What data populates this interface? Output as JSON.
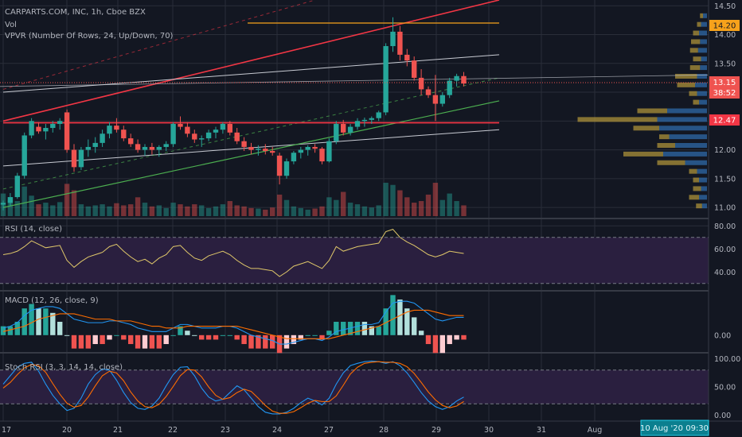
{
  "colors": {
    "bg": "#131722",
    "up": "#26a69a",
    "down": "#ef5350",
    "grid": "#2a2e39",
    "text": "#b2b5be",
    "red_line": "#f23645",
    "green_line": "#4caf50",
    "orange": "#f7a21b",
    "rsi": "#e0c86a",
    "macd": "#2196f3",
    "signal": "#ff6d00",
    "band_fill": "#2a1f3f",
    "vp_up": "#2f6aa8",
    "vp_down": "#b79a3a"
  },
  "legend": {
    "main_title": "CARPARTS.COM, INC, 1h, Cboe BZX",
    "vol": "Vol",
    "vpvr": "VPVR (Number Of Rows, 24, Up/Down, 70)",
    "rsi": "RSI (14, close)",
    "macd": "MACD (12, 26, close, 9)",
    "stoch": "Stoch RSI (3, 3, 14, 14, close)"
  },
  "price_labels": {
    "last": "13.15",
    "countdown": "38:52",
    "level_orange": "14.20",
    "level_red": "12.47"
  },
  "date_tooltip": "10 Aug '20   09:30",
  "chart_data": [
    {
      "type": "candlestick",
      "ylim": [
        10.85,
        14.6
      ],
      "y_ticks": [
        "14.50",
        "14.00",
        "13.50",
        "13.00",
        "12.50",
        "12.00",
        "11.50",
        "11.00"
      ],
      "x_ticks": [
        "17",
        "20",
        "21",
        "22",
        "23",
        "24",
        "27",
        "28",
        "29",
        "30",
        "31",
        "Aug"
      ],
      "candles": [
        [
          11.05,
          11.12,
          10.95,
          11.08
        ],
        [
          11.08,
          11.25,
          11.02,
          11.18
        ],
        [
          11.18,
          11.6,
          11.15,
          11.55
        ],
        [
          11.55,
          12.3,
          11.5,
          12.25
        ],
        [
          12.25,
          12.55,
          12.2,
          12.5
        ],
        [
          12.4,
          12.48,
          12.28,
          12.32
        ],
        [
          12.32,
          12.45,
          12.18,
          12.38
        ],
        [
          12.38,
          12.5,
          12.3,
          12.45
        ],
        [
          12.45,
          12.55,
          12.35,
          12.5
        ],
        [
          12.65,
          12.7,
          11.95,
          12.0
        ],
        [
          12.0,
          12.1,
          11.62,
          11.7
        ],
        [
          11.7,
          12.05,
          11.65,
          12.0
        ],
        [
          12.0,
          12.18,
          11.88,
          12.05
        ],
        [
          12.05,
          12.22,
          11.95,
          12.12
        ],
        [
          12.12,
          12.35,
          12.05,
          12.28
        ],
        [
          12.28,
          12.48,
          12.2,
          12.42
        ],
        [
          12.42,
          12.55,
          12.3,
          12.35
        ],
        [
          12.35,
          12.42,
          12.15,
          12.2
        ],
        [
          12.2,
          12.28,
          12.05,
          12.1
        ],
        [
          12.1,
          12.18,
          11.95,
          12.0
        ],
        [
          12.0,
          12.1,
          11.9,
          12.05
        ],
        [
          12.05,
          12.12,
          11.92,
          12.0
        ],
        [
          12.0,
          12.08,
          11.88,
          12.05
        ],
        [
          12.05,
          12.15,
          11.98,
          12.1
        ],
        [
          12.1,
          12.48,
          12.05,
          12.45
        ],
        [
          12.45,
          12.58,
          12.35,
          12.4
        ],
        [
          12.4,
          12.48,
          12.22,
          12.28
        ],
        [
          12.28,
          12.35,
          12.12,
          12.18
        ],
        [
          12.18,
          12.25,
          12.05,
          12.2
        ],
        [
          12.2,
          12.35,
          12.15,
          12.3
        ],
        [
          12.3,
          12.4,
          12.2,
          12.35
        ],
        [
          12.35,
          12.48,
          12.28,
          12.45
        ],
        [
          12.45,
          12.5,
          12.25,
          12.3
        ],
        [
          12.3,
          12.38,
          12.1,
          12.15
        ],
        [
          12.15,
          12.22,
          11.98,
          12.05
        ],
        [
          12.05,
          12.12,
          11.92,
          12.0
        ],
        [
          12.0,
          12.08,
          11.9,
          12.02
        ],
        [
          12.02,
          12.1,
          11.92,
          11.98
        ],
        [
          11.98,
          12.05,
          11.9,
          11.95
        ],
        [
          11.9,
          11.95,
          11.4,
          11.55
        ],
        [
          11.55,
          11.85,
          11.5,
          11.8
        ],
        [
          11.8,
          11.98,
          11.75,
          11.95
        ],
        [
          11.95,
          12.05,
          11.85,
          12.0
        ],
        [
          12.0,
          12.08,
          11.9,
          12.05
        ],
        [
          12.05,
          12.1,
          11.95,
          12.02
        ],
        [
          12.02,
          12.05,
          11.75,
          11.8
        ],
        [
          11.8,
          12.2,
          11.78,
          12.15
        ],
        [
          12.15,
          12.5,
          12.1,
          12.45
        ],
        [
          12.45,
          12.52,
          12.25,
          12.3
        ],
        [
          12.3,
          12.45,
          12.25,
          12.4
        ],
        [
          12.4,
          12.55,
          12.35,
          12.5
        ],
        [
          12.5,
          12.56,
          12.4,
          12.52
        ],
        [
          12.52,
          12.58,
          12.45,
          12.55
        ],
        [
          12.55,
          12.68,
          12.5,
          12.65
        ],
        [
          12.65,
          13.85,
          12.6,
          13.8
        ],
        [
          13.8,
          14.3,
          13.7,
          14.05
        ],
        [
          14.05,
          14.15,
          13.55,
          13.65
        ],
        [
          13.65,
          13.75,
          13.45,
          13.55
        ],
        [
          13.55,
          13.62,
          13.2,
          13.25
        ],
        [
          13.25,
          13.4,
          12.95,
          13.05
        ],
        [
          13.05,
          13.1,
          12.9,
          12.95
        ],
        [
          12.95,
          13.3,
          12.5,
          12.8
        ],
        [
          12.8,
          13.0,
          12.75,
          12.95
        ],
        [
          12.95,
          13.25,
          12.9,
          13.2
        ],
        [
          13.2,
          13.32,
          13.1,
          13.28
        ],
        [
          13.28,
          13.35,
          13.1,
          13.15
        ]
      ],
      "lines": [
        {
          "name": "red-channel",
          "points": [
            [
              0,
              12.5
            ],
            [
              70,
              14.6
            ]
          ]
        },
        {
          "name": "red-channel-dashed",
          "points": [
            [
              0,
              13.05
            ],
            [
              44,
              14.6
            ]
          ]
        },
        {
          "name": "upper-white-channel",
          "points": [
            [
              0,
              13.0
            ],
            [
              70,
              13.65
            ]
          ]
        },
        {
          "name": "lower-white-channel",
          "points": [
            [
              0,
              11.72
            ],
            [
              70,
              12.35
            ]
          ]
        },
        {
          "name": "green-trend",
          "points": [
            [
              0,
              11.0
            ],
            [
              70,
              12.85
            ]
          ]
        },
        {
          "name": "green-trend-dashed",
          "points": [
            [
              0,
              11.32
            ],
            [
              70,
              13.25
            ]
          ]
        },
        {
          "name": "red-horizontal",
          "points": [
            [
              0,
              12.47
            ],
            [
              70,
              12.47
            ]
          ]
        },
        {
          "name": "orange-horizontal",
          "points": [
            [
              34.5,
              14.2
            ],
            [
              70,
              14.2
            ]
          ]
        }
      ],
      "volume": [
        42,
        30,
        28,
        55,
        38,
        22,
        25,
        20,
        26,
        60,
        48,
        22,
        18,
        20,
        22,
        18,
        24,
        20,
        22,
        35,
        25,
        18,
        20,
        15,
        25,
        22,
        18,
        22,
        20,
        15,
        18,
        22,
        28,
        20,
        18,
        15,
        14,
        12,
        16,
        40,
        30,
        18,
        15,
        12,
        14,
        18,
        35,
        30,
        45,
        25,
        22,
        18,
        16,
        20,
        62,
        58,
        48,
        35,
        25,
        28,
        40,
        62,
        30,
        42,
        28,
        20
      ],
      "volume_profile": [
        {
          "price": 14.32,
          "up": 4,
          "down": 3
        },
        {
          "price": 14.17,
          "up": 6,
          "down": 4
        },
        {
          "price": 14.02,
          "up": 8,
          "down": 6
        },
        {
          "price": 13.87,
          "up": 7,
          "down": 9
        },
        {
          "price": 13.72,
          "up": 9,
          "down": 8
        },
        {
          "price": 13.57,
          "up": 6,
          "down": 8
        },
        {
          "price": 13.42,
          "up": 7,
          "down": 10
        },
        {
          "price": 13.27,
          "up": 10,
          "down": 22
        },
        {
          "price": 13.12,
          "up": 12,
          "down": 18
        },
        {
          "price": 12.97,
          "up": 10,
          "down": 8
        },
        {
          "price": 12.82,
          "up": 8,
          "down": 6
        },
        {
          "price": 12.67,
          "up": 40,
          "down": 30
        },
        {
          "price": 12.52,
          "up": 50,
          "down": 80
        },
        {
          "price": 12.37,
          "up": 48,
          "down": 26
        },
        {
          "price": 12.22,
          "up": 38,
          "down": 10
        },
        {
          "price": 12.07,
          "up": 32,
          "down": 18
        },
        {
          "price": 11.92,
          "up": 44,
          "down": 40
        },
        {
          "price": 11.77,
          "up": 22,
          "down": 28
        },
        {
          "price": 11.62,
          "up": 10,
          "down": 8
        },
        {
          "price": 11.47,
          "up": 8,
          "down": 6
        },
        {
          "price": 11.32,
          "up": 6,
          "down": 8
        },
        {
          "price": 11.17,
          "up": 8,
          "down": 10
        },
        {
          "price": 11.02,
          "up": 5,
          "down": 6
        }
      ]
    },
    {
      "type": "line",
      "name": "RSI",
      "ylim": [
        25,
        85
      ],
      "y_ticks": [
        "80.00",
        "60.00",
        "40.00"
      ],
      "bands": [
        30,
        70
      ],
      "values": [
        55,
        56,
        58,
        62,
        67,
        64,
        61,
        62,
        63,
        50,
        44,
        49,
        53,
        55,
        57,
        62,
        64,
        58,
        53,
        49,
        51,
        47,
        52,
        55,
        62,
        63,
        57,
        52,
        50,
        54,
        56,
        58,
        55,
        50,
        46,
        43,
        43,
        42,
        41,
        36,
        40,
        45,
        47,
        49,
        46,
        43,
        50,
        62,
        58,
        60,
        62,
        63,
        64,
        65,
        75,
        77,
        70,
        66,
        63,
        59,
        55,
        53,
        55,
        58,
        57,
        56
      ]
    },
    {
      "type": "line",
      "name": "MACD",
      "ylim": [
        -0.09,
        0.24
      ],
      "y_ticks": [
        "0.00"
      ],
      "macd": [
        0.04,
        0.05,
        0.07,
        0.11,
        0.14,
        0.15,
        0.16,
        0.16,
        0.15,
        0.12,
        0.09,
        0.08,
        0.07,
        0.07,
        0.07,
        0.08,
        0.08,
        0.07,
        0.06,
        0.04,
        0.03,
        0.02,
        0.02,
        0.02,
        0.04,
        0.06,
        0.06,
        0.05,
        0.04,
        0.04,
        0.04,
        0.05,
        0.05,
        0.04,
        0.02,
        0.0,
        -0.01,
        -0.02,
        -0.03,
        -0.05,
        -0.05,
        -0.04,
        -0.03,
        -0.02,
        -0.02,
        -0.03,
        -0.01,
        0.02,
        0.03,
        0.04,
        0.05,
        0.06,
        0.06,
        0.07,
        0.13,
        0.18,
        0.19,
        0.19,
        0.18,
        0.15,
        0.12,
        0.09,
        0.08,
        0.09,
        0.1,
        0.1
      ],
      "signal": [
        0.02,
        0.03,
        0.04,
        0.05,
        0.07,
        0.09,
        0.1,
        0.11,
        0.12,
        0.12,
        0.12,
        0.11,
        0.1,
        0.09,
        0.09,
        0.09,
        0.08,
        0.08,
        0.08,
        0.07,
        0.06,
        0.05,
        0.05,
        0.04,
        0.04,
        0.04,
        0.05,
        0.05,
        0.05,
        0.05,
        0.05,
        0.05,
        0.05,
        0.05,
        0.04,
        0.03,
        0.02,
        0.01,
        0.0,
        -0.01,
        -0.02,
        -0.02,
        -0.02,
        -0.02,
        -0.02,
        -0.02,
        -0.02,
        -0.01,
        0.0,
        0.01,
        0.02,
        0.03,
        0.04,
        0.05,
        0.07,
        0.09,
        0.11,
        0.13,
        0.14,
        0.14,
        0.14,
        0.13,
        0.12,
        0.11,
        0.11,
        0.11
      ]
    },
    {
      "type": "line",
      "name": "Stoch RSI",
      "ylim": [
        -8,
        108
      ],
      "y_ticks": [
        "100.00",
        "50.00",
        "0.00"
      ],
      "bands": [
        20,
        80
      ],
      "k": [
        55,
        70,
        85,
        92,
        94,
        78,
        55,
        35,
        20,
        8,
        12,
        30,
        55,
        72,
        82,
        80,
        62,
        40,
        22,
        12,
        10,
        16,
        30,
        52,
        72,
        85,
        86,
        70,
        48,
        32,
        25,
        28,
        40,
        52,
        45,
        30,
        15,
        5,
        2,
        2,
        5,
        12,
        22,
        30,
        25,
        18,
        30,
        55,
        75,
        88,
        92,
        95,
        96,
        95,
        92,
        95,
        88,
        75,
        58,
        40,
        25,
        15,
        10,
        15,
        25,
        32
      ],
      "d": [
        48,
        58,
        72,
        84,
        90,
        88,
        76,
        56,
        37,
        21,
        14,
        17,
        32,
        52,
        70,
        78,
        75,
        61,
        41,
        25,
        15,
        13,
        19,
        33,
        51,
        70,
        81,
        80,
        68,
        50,
        35,
        28,
        31,
        40,
        46,
        42,
        30,
        17,
        7,
        3,
        3,
        6,
        13,
        21,
        26,
        24,
        24,
        34,
        53,
        73,
        85,
        92,
        94,
        95,
        94,
        94,
        92,
        86,
        74,
        58,
        41,
        27,
        17,
        13,
        16,
        24
      ]
    }
  ]
}
